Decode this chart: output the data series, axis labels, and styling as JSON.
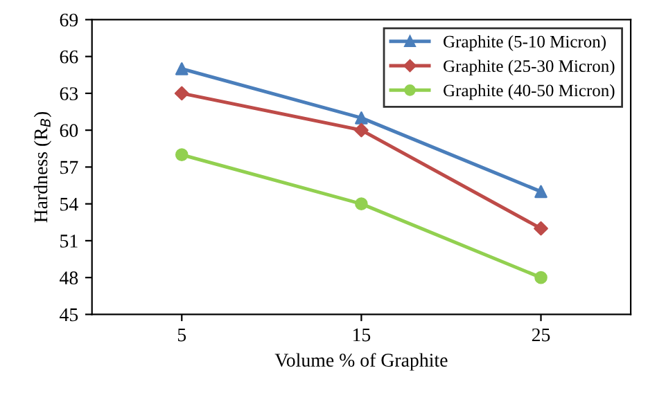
{
  "chart_data": {
    "type": "line",
    "xlabel": "Volume % of Graphite",
    "ylabel": "Hardness (R$_{B}$)",
    "x": [
      5,
      15,
      25
    ],
    "xlim": [
      0,
      30
    ],
    "xticks": [
      5,
      15,
      25
    ],
    "series": [
      {
        "name": "Graphite (5-10 Micron)",
        "color": "#4a7ebb",
        "marker": "triangle",
        "values": [
          65,
          61,
          55
        ]
      },
      {
        "name": "Graphite (25-30 Micron)",
        "color": "#be4b48",
        "marker": "diamond",
        "values": [
          63,
          60,
          52
        ]
      },
      {
        "name": "Graphite (40-50 Micron)",
        "color": "#92d050",
        "marker": "circle",
        "values": [
          58,
          54,
          48
        ]
      }
    ],
    "ylim": [
      45,
      69
    ],
    "yticks": [
      45,
      48,
      51,
      54,
      57,
      60,
      63,
      66,
      69
    ],
    "grid": false,
    "legend": "top right",
    "line_style": "solid"
  }
}
